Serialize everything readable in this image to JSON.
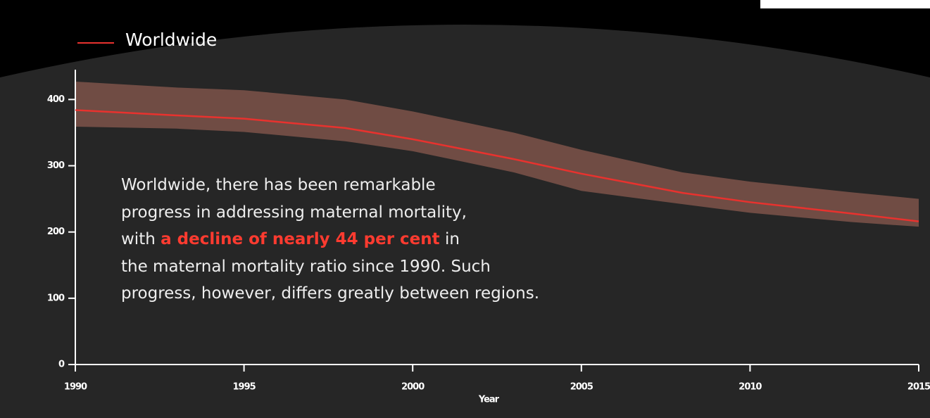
{
  "chart_data": {
    "type": "line",
    "series": [
      {
        "name": "Worldwide",
        "color": "#e8322e",
        "values": [
          384,
          376,
          371,
          357,
          340,
          310,
          288,
          259,
          245,
          228,
          216
        ]
      }
    ],
    "x": [
      1990,
      1993,
      1995,
      1998,
      2000,
      2003,
      2005,
      2008,
      2010,
      2013,
      2015
    ],
    "band": {
      "color": "#8a5a4f",
      "upper": [
        427,
        418,
        414,
        400,
        382,
        350,
        324,
        290,
        276,
        260,
        250
      ],
      "lower": [
        359,
        356,
        351,
        337,
        322,
        290,
        262,
        242,
        229,
        215,
        208
      ]
    },
    "xlim": [
      1990,
      2015
    ],
    "xticks": [
      1990,
      1995,
      2000,
      2005,
      2010,
      2015
    ],
    "ylim": [
      0,
      445
    ],
    "yticks": [
      0,
      100,
      200,
      300,
      400
    ],
    "x_label": "Year",
    "annotation": {
      "before": "Worldwide, there has been remarkable\nprogress in addressing maternal mortality,\nwith ",
      "highlight": "a decline of nearly 44 per cent",
      "after": " in\nthe maternal mortality ratio since 1990. Such\nprogress, however, differs greatly between regions."
    }
  }
}
